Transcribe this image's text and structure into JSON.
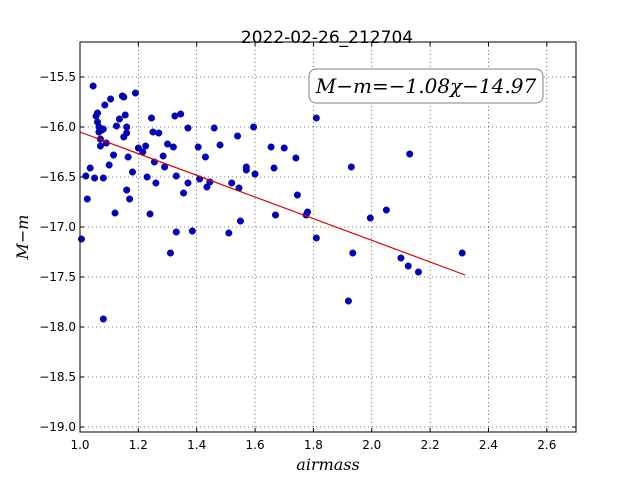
{
  "chart_data": {
    "type": "scatter",
    "title": "2022-02-26_212704",
    "xlabel": "airmass",
    "ylabel": "M−m",
    "xlim": [
      1.0,
      2.7
    ],
    "ylim": [
      -19.05,
      -15.15
    ],
    "y_inverted": true,
    "grid": true,
    "x_ticks": [
      1.0,
      1.2,
      1.4,
      1.6,
      1.8,
      2.0,
      2.2,
      2.4,
      2.6
    ],
    "x_tick_labels": [
      "1.0",
      "1.2",
      "1.4",
      "1.6",
      "1.8",
      "2.0",
      "2.2",
      "2.4",
      "2.6"
    ],
    "y_ticks": [
      -15.5,
      -16.0,
      -16.5,
      -17.0,
      -17.5,
      -18.0,
      -18.5,
      -19.0
    ],
    "y_tick_labels": [
      "−15.5",
      "−16.0",
      "−16.5",
      "−17.0",
      "−17.5",
      "−18.0",
      "−18.5",
      "−19.0"
    ],
    "annotation": "M−m=−1.08χ−14.97",
    "annotation_position": "top-right",
    "series": [
      {
        "kind": "points",
        "color": "#0000cc",
        "points": [
          [
            1.005,
            -17.12
          ],
          [
            1.02,
            -16.49
          ],
          [
            1.025,
            -16.72
          ],
          [
            1.035,
            -16.41
          ],
          [
            1.045,
            -15.59
          ],
          [
            1.05,
            -16.51
          ],
          [
            1.055,
            -15.89
          ],
          [
            1.06,
            -15.86
          ],
          [
            1.06,
            -15.95
          ],
          [
            1.065,
            -16.0
          ],
          [
            1.065,
            -16.05
          ],
          [
            1.07,
            -16.19
          ],
          [
            1.07,
            -16.12
          ],
          [
            1.075,
            -16.03
          ],
          [
            1.08,
            -16.02
          ],
          [
            1.085,
            -15.78
          ],
          [
            1.08,
            -16.51
          ],
          [
            1.08,
            -17.92
          ],
          [
            1.09,
            -16.16
          ],
          [
            1.1,
            -16.38
          ],
          [
            1.105,
            -15.72
          ],
          [
            1.115,
            -16.28
          ],
          [
            1.12,
            -16.86
          ],
          [
            1.125,
            -15.99
          ],
          [
            1.135,
            -15.92
          ],
          [
            1.145,
            -15.69
          ],
          [
            1.15,
            -15.7
          ],
          [
            1.15,
            -16.1
          ],
          [
            1.155,
            -15.88
          ],
          [
            1.16,
            -16.0
          ],
          [
            1.16,
            -16.06
          ],
          [
            1.16,
            -16.63
          ],
          [
            1.165,
            -16.3
          ],
          [
            1.17,
            -16.72
          ],
          [
            1.18,
            -16.45
          ],
          [
            1.19,
            -15.66
          ],
          [
            1.2,
            -16.21
          ],
          [
            1.215,
            -16.25
          ],
          [
            1.225,
            -16.19
          ],
          [
            1.23,
            -16.5
          ],
          [
            1.24,
            -16.87
          ],
          [
            1.245,
            -15.91
          ],
          [
            1.25,
            -16.05
          ],
          [
            1.255,
            -16.35
          ],
          [
            1.26,
            -16.56
          ],
          [
            1.27,
            -16.06
          ],
          [
            1.285,
            -16.29
          ],
          [
            1.29,
            -16.4
          ],
          [
            1.3,
            -16.17
          ],
          [
            1.31,
            -17.26
          ],
          [
            1.32,
            -16.2
          ],
          [
            1.325,
            -15.89
          ],
          [
            1.33,
            -16.49
          ],
          [
            1.33,
            -17.05
          ],
          [
            1.345,
            -15.87
          ],
          [
            1.355,
            -16.66
          ],
          [
            1.37,
            -16.01
          ],
          [
            1.37,
            -16.56
          ],
          [
            1.385,
            -17.04
          ],
          [
            1.405,
            -16.2
          ],
          [
            1.41,
            -16.52
          ],
          [
            1.43,
            -16.3
          ],
          [
            1.435,
            -16.6
          ],
          [
            1.445,
            -16.55
          ],
          [
            1.46,
            -16.01
          ],
          [
            1.48,
            -16.18
          ],
          [
            1.51,
            -17.06
          ],
          [
            1.52,
            -16.56
          ],
          [
            1.54,
            -16.09
          ],
          [
            1.545,
            -16.61
          ],
          [
            1.55,
            -16.94
          ],
          [
            1.57,
            -16.4
          ],
          [
            1.57,
            -16.43
          ],
          [
            1.595,
            -16.0
          ],
          [
            1.6,
            -16.47
          ],
          [
            1.655,
            -16.2
          ],
          [
            1.665,
            -16.41
          ],
          [
            1.67,
            -16.88
          ],
          [
            1.7,
            -16.21
          ],
          [
            1.74,
            -16.31
          ],
          [
            1.745,
            -16.68
          ],
          [
            1.775,
            -16.88
          ],
          [
            1.78,
            -16.85
          ],
          [
            1.81,
            -15.91
          ],
          [
            1.81,
            -17.11
          ],
          [
            1.92,
            -17.74
          ],
          [
            1.93,
            -16.4
          ],
          [
            1.935,
            -17.26
          ],
          [
            1.995,
            -16.91
          ],
          [
            2.05,
            -16.83
          ],
          [
            2.1,
            -17.31
          ],
          [
            2.125,
            -17.39
          ],
          [
            2.13,
            -16.27
          ],
          [
            2.16,
            -17.45
          ],
          [
            2.31,
            -17.26
          ]
        ]
      },
      {
        "kind": "fit-line",
        "color": "#dd0000",
        "x": [
          1.0,
          2.32
        ],
        "y": [
          -16.05,
          -17.48
        ]
      }
    ]
  }
}
